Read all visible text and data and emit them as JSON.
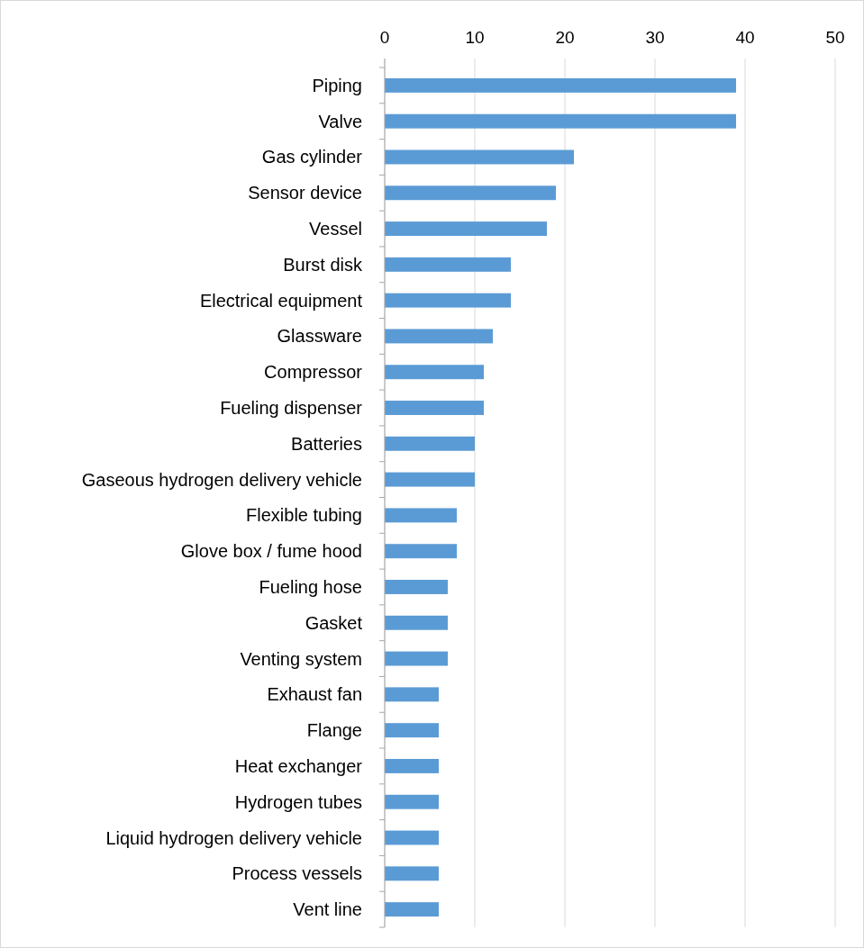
{
  "chart_data": {
    "type": "bar",
    "orientation": "horizontal",
    "categories": [
      "Piping",
      "Valve",
      "Gas cylinder",
      "Sensor device",
      "Vessel",
      "Burst disk",
      "Electrical equipment",
      "Glassware",
      "Compressor",
      "Fueling dispenser",
      "Batteries",
      "Gaseous hydrogen delivery vehicle",
      "Flexible tubing",
      "Glove box / fume hood",
      "Fueling hose",
      "Gasket",
      "Venting system",
      "Exhaust fan",
      "Flange",
      "Heat exchanger",
      "Hydrogen tubes",
      "Liquid hydrogen delivery vehicle",
      "Process vessels",
      "Vent line"
    ],
    "values": [
      39,
      39,
      21,
      19,
      18,
      14,
      14,
      12,
      11,
      11,
      10,
      10,
      8,
      8,
      7,
      7,
      7,
      6,
      6,
      6,
      6,
      6,
      6,
      6
    ],
    "color": "#5b9bd5",
    "xlim": [
      0,
      50
    ],
    "xticks": [
      0,
      10,
      20,
      30,
      40,
      50
    ],
    "grid": "x"
  }
}
